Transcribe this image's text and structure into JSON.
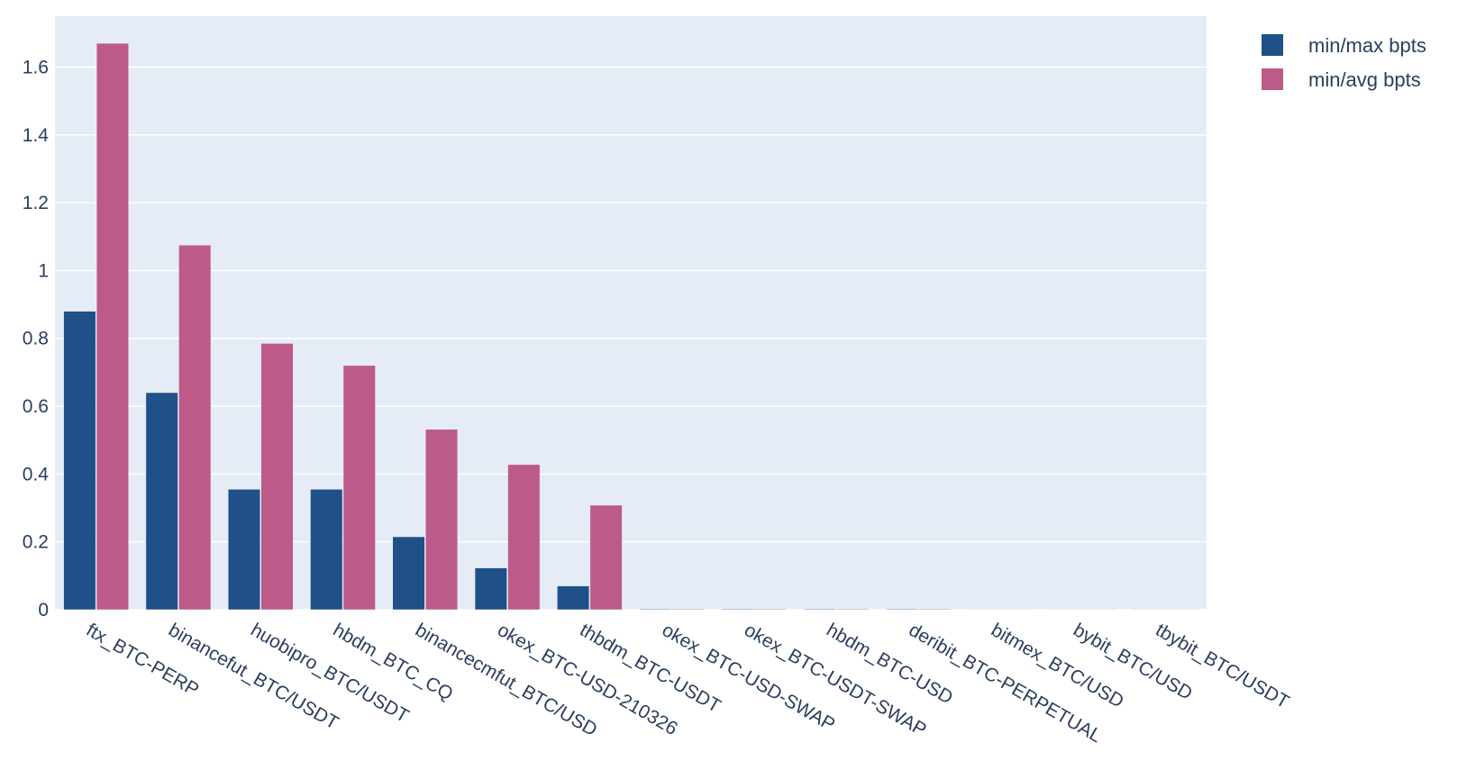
{
  "chart_data": {
    "type": "bar",
    "title": "",
    "xlabel": "",
    "ylabel": "",
    "ylim": [
      0,
      1.75
    ],
    "y_ticks": [
      0,
      0.2,
      0.4,
      0.6,
      0.8,
      1,
      1.2,
      1.4,
      1.6
    ],
    "y_tick_labels": [
      "0",
      "0.2",
      "0.4",
      "0.6",
      "0.8",
      "1",
      "1.2",
      "1.4",
      "1.6"
    ],
    "grid": true,
    "legend_position": "top-right",
    "categories": [
      "ftx_BTC-PERP",
      "binancefut_BTC/USDT",
      "huobipro_BTC/USDT",
      "hbdm_BTC_CQ",
      "binancecmfut_BTC/USD",
      "okex_BTC-USD-210326",
      "thbdm_BTC-USDT",
      "okex_BTC-USD-SWAP",
      "okex_BTC-USDT-SWAP",
      "hbdm_BTC-USD",
      "deribit_BTC-PERPETUAL",
      "bitmex_BTC/USD",
      "bybit_BTC/USD",
      "tbybit_BTC/USDT"
    ],
    "series": [
      {
        "name": "min/max bpts",
        "color": "#1f5087",
        "values": [
          0.88,
          0.64,
          0.355,
          0.355,
          0.215,
          0.123,
          0.07,
          0.002,
          0.002,
          0.002,
          0.002,
          0.001,
          0.001,
          0.001
        ]
      },
      {
        "name": "min/avg bpts",
        "color": "#bc5a89",
        "values": [
          1.67,
          1.075,
          0.785,
          0.72,
          0.532,
          0.428,
          0.308,
          0.002,
          0.002,
          0.002,
          0.002,
          0.001,
          0.001,
          0.001
        ]
      }
    ]
  },
  "colors": {
    "plot_background": "#e5ecf6",
    "gridline": "#ffffff",
    "text": "#2a3f5f"
  }
}
